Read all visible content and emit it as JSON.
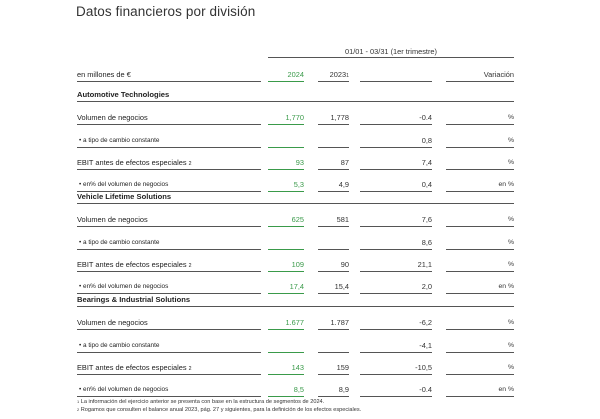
{
  "title": "Datos financieros por división",
  "period": "01/01 - 03/31 (1er trimestre)",
  "header": {
    "label": "en millones de €",
    "col_2024": "2024",
    "col_2023": "2023",
    "col_2023_note": "1",
    "col_variation": "Variación"
  },
  "sections": [
    {
      "name": "Automotive Technologies",
      "rows": [
        {
          "label": "Volumen de negocios",
          "note": "",
          "v2024": "1,770",
          "v2023": "1,778",
          "var": "-0.4",
          "unit": "%"
        },
        {
          "label": "• a tipo de cambio constante",
          "note": "",
          "v2024": "",
          "v2023": "",
          "var": "0,8",
          "unit": "%"
        },
        {
          "label": "EBIT antes de efectos especiales",
          "note": "2",
          "v2024": "93",
          "v2023": "87",
          "var": "7,4",
          "unit": "%"
        },
        {
          "label": "• en% del volumen de negocios",
          "note": "",
          "v2024": "5,3",
          "v2023": "4,9",
          "var": "0,4",
          "unit": "en %"
        }
      ]
    },
    {
      "name": "Vehicle Lifetime Solutions",
      "rows": [
        {
          "label": "Volumen de negocios",
          "note": "",
          "v2024": "625",
          "v2023": "581",
          "var": "7,6",
          "unit": "%"
        },
        {
          "label": "• a tipo de cambio constante",
          "note": "",
          "v2024": "",
          "v2023": "",
          "var": "8,6",
          "unit": "%"
        },
        {
          "label": "EBIT antes de efectos especiales",
          "note": "2",
          "v2024": "109",
          "v2023": "90",
          "var": "21,1",
          "unit": "%"
        },
        {
          "label": "• en% del volumen de negocios",
          "note": "",
          "v2024": "17,4",
          "v2023": "15,4",
          "var": "2,0",
          "unit": "en %"
        }
      ]
    },
    {
      "name": "Bearings & Industrial Solutions",
      "rows": [
        {
          "label": "Volumen de negocios",
          "note": "",
          "v2024": "1.677",
          "v2023": "1.787",
          "var": "-6,2",
          "unit": "%"
        },
        {
          "label": "• a tipo de cambio constante",
          "note": "",
          "v2024": "",
          "v2023": "",
          "var": "-4,1",
          "unit": "%"
        },
        {
          "label": "EBIT antes de efectos especiales",
          "note": "2",
          "v2024": "143",
          "v2023": "159",
          "var": "-10,5",
          "unit": "%"
        },
        {
          "label": "• en% del volumen de negocios",
          "note": "",
          "v2024": "8,5",
          "v2023": "8,9",
          "var": "-0.4",
          "unit": "en %"
        }
      ]
    }
  ],
  "footnotes": [
    {
      "num": "1",
      "text": "La información del ejercicio anterior se presenta con base en la estructura de segmentos de 2024."
    },
    {
      "num": "2",
      "text": "Rogamos que consulten el balance anual 2023, pág. 27 y siguientes, para la definición de los efectos especiales."
    }
  ]
}
